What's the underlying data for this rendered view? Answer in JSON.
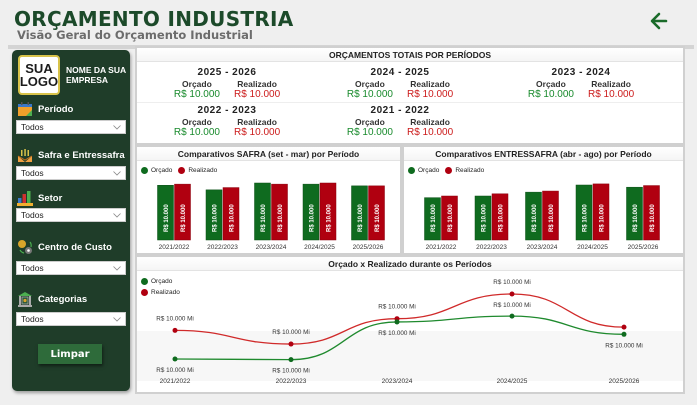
{
  "header": {
    "title": "ORÇAMENTO INDUSTRIA",
    "subtitle": "Visão Geral do Orçamento Industrial",
    "back_icon": "arrow-left-icon"
  },
  "colors": {
    "title": "#1c4a2a",
    "sidebar": "#1f3d29",
    "orcado": "#0f6b1f",
    "realizado": "#b00010",
    "orcado_text": "#188a2c",
    "realizado_text": "#cc1b1b",
    "logo_border": "#d8c34a"
  },
  "sidebar": {
    "logo_line1": "SUA",
    "logo_line2": "LOGO",
    "company_name": "NOME DA SUA EMPRESA",
    "filters": [
      {
        "label": "Período",
        "icon": "calendar-icon",
        "value": "Todos"
      },
      {
        "label": "Safra e Entressafra",
        "icon": "harvest-icon",
        "value": "Todos"
      },
      {
        "label": "Setor",
        "icon": "bar-chart-icon",
        "value": "Todos"
      },
      {
        "label": "Centro de Custo",
        "icon": "cost-center-icon",
        "value": "Todos"
      },
      {
        "label": "Categorias",
        "icon": "bank-icon",
        "value": "Todos"
      }
    ],
    "clear_button": "Limpar"
  },
  "totals": {
    "title": "ORÇAMENTOS TOTAIS POR PERÍODOS",
    "orcado_label": "Orçado",
    "realizado_label": "Realizado",
    "periods": [
      {
        "period": "2025 - 2026",
        "orcado": "R$ 10.000",
        "realizado": "R$ 10.000"
      },
      {
        "period": "2024 - 2025",
        "orcado": "R$ 10.000",
        "realizado": "R$ 10.000"
      },
      {
        "period": "2023 - 2024",
        "orcado": "R$ 10.000",
        "realizado": "R$ 10.000"
      },
      {
        "period": "2022 - 2023",
        "orcado": "R$ 10.000",
        "realizado": "R$ 10.000"
      },
      {
        "period": "2021 - 2022",
        "orcado": "R$ 10.000",
        "realizado": "R$ 10.000"
      }
    ]
  },
  "chart_data": [
    {
      "type": "bar",
      "title": "Comparativos SAFRA (set - mar) por Período",
      "legend": [
        "Orçado",
        "Realizado"
      ],
      "legend_position": "top-left",
      "categories": [
        "2021/2022",
        "2022/2023",
        "2023/2024",
        "2024/2025",
        "2025/2026"
      ],
      "series": [
        {
          "name": "Orçado",
          "values": [
            0.96,
            0.88,
            1.0,
            0.98,
            0.95
          ],
          "labels": [
            "R$ 10.000",
            "R$ 10.000",
            "R$ 10.000",
            "R$ 10.000",
            "R$ 10.000"
          ]
        },
        {
          "name": "Realizado",
          "values": [
            0.98,
            0.92,
            0.98,
            1.0,
            0.95
          ],
          "labels": [
            "R$ 10.000",
            "R$ 10.000",
            "R$ 10.000",
            "R$ 10.000",
            "R$ 10.000"
          ]
        }
      ],
      "value_note": "relative bar heights; all data labels read R$ 10.000"
    },
    {
      "type": "bar",
      "title": "Comparativos ENTRESSAFRA (abr - ago) por Período",
      "legend": [
        "Orçado",
        "Realizado"
      ],
      "legend_position": "top-left",
      "categories": [
        "2021/2022",
        "2022/2023",
        "2023/2024",
        "2024/2025",
        "2025/2026"
      ],
      "series": [
        {
          "name": "Orçado",
          "values": [
            0.77,
            0.8,
            0.87,
            1.0,
            0.96
          ],
          "labels": [
            "R$ 10.000",
            "R$ 10.000",
            "R$ 10.000",
            "R$ 10.000",
            "R$ 10.000"
          ]
        },
        {
          "name": "Realizado",
          "values": [
            0.8,
            0.84,
            0.89,
            1.02,
            0.99
          ],
          "labels": [
            "R$ 10.000",
            "R$ 10.000",
            "R$ 10.000",
            "R$ 10.000",
            "R$ 10.000"
          ]
        }
      ],
      "value_note": "relative bar heights; all data labels read R$ 10.000"
    },
    {
      "type": "line",
      "title": "Orçado x Realizado durante os Períodos",
      "legend": [
        "Orçado",
        "Realizado"
      ],
      "legend_position": "top-left",
      "x": [
        "2021/2022",
        "2022/2023",
        "2023/2024",
        "2024/2025",
        "2025/2026"
      ],
      "series": [
        {
          "name": "Orçado",
          "values": [
            0.0,
            -0.01,
            0.57,
            0.66,
            0.38
          ],
          "labels": [
            "R$ 10.000 Mi",
            "R$ 10.000 Mi",
            "R$ 10.000 Mi",
            "R$ 10.000 Mi",
            "R$ 10.000 Mi"
          ]
        },
        {
          "name": "Realizado",
          "values": [
            0.44,
            0.23,
            0.62,
            1.0,
            0.49
          ],
          "labels": [
            "R$ 10.000 Mi",
            "R$ 10.000 Mi",
            "R$ 10.000 Mi",
            "R$ 10.000 Mi",
            "R$ 10.000 Mi"
          ]
        }
      ],
      "value_note": "relative positions; all point labels read R$ 10.000 Mi",
      "grid": false
    }
  ]
}
